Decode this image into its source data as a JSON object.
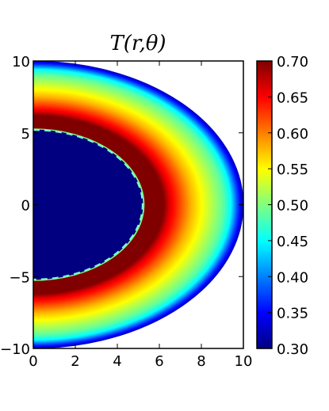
{
  "chart_data": {
    "type": "heatmap",
    "title": "T(r,θ)",
    "projection": "polar half-disk (r, θ) drawn in cartesian x–y",
    "xlim": [
      0,
      10
    ],
    "ylim": [
      -10,
      10
    ],
    "xticks": [
      "0",
      "2",
      "4",
      "6",
      "8",
      "10"
    ],
    "yticks": [
      "10",
      "5",
      "0",
      "−5",
      "−10"
    ],
    "colorbar": {
      "colormap": "jet",
      "vmin": 0.3,
      "vmax": 0.7,
      "ticks": [
        "0.70",
        "0.65",
        "0.60",
        "0.55",
        "0.50",
        "0.45",
        "0.40",
        "0.35",
        "0.30"
      ]
    },
    "outer_radius": 10,
    "radial_profile": {
      "r": [
        0,
        5.2,
        5.3,
        5.5,
        6.2,
        6.5,
        7.0,
        7.5,
        8.0,
        8.5,
        9.0,
        9.4,
        9.7,
        10.0
      ],
      "T": [
        0.3,
        0.3,
        0.7,
        0.7,
        0.7,
        0.66,
        0.62,
        0.58,
        0.55,
        0.52,
        0.49,
        0.45,
        0.38,
        0.32
      ]
    },
    "inner_boundary_dashed": {
      "color": "#7fffd4",
      "note": "dashed contour at the edge of the cold core"
    }
  }
}
